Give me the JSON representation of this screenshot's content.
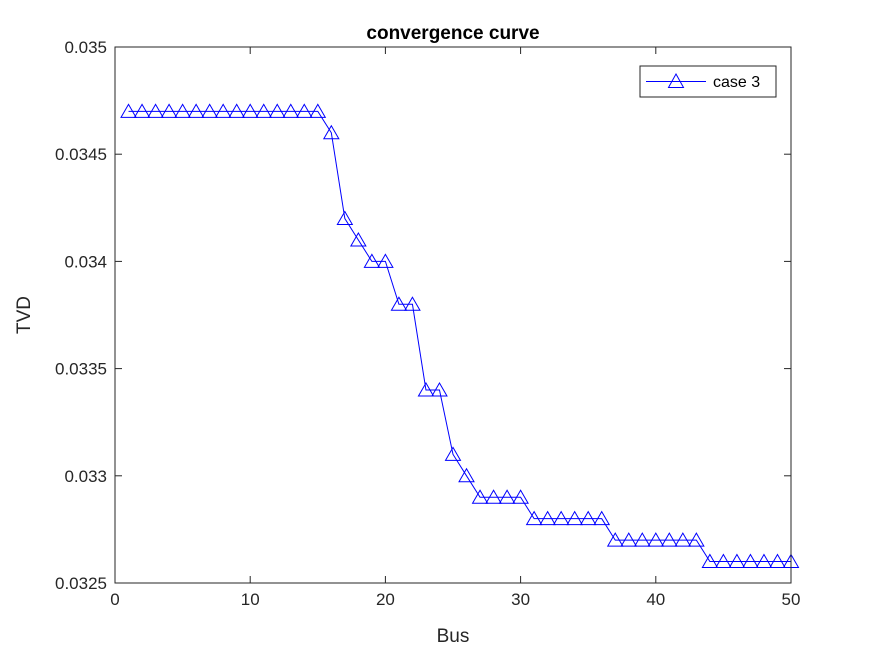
{
  "chart_data": {
    "type": "line",
    "title": "convergence curve",
    "xlabel": "Bus",
    "ylabel": "TVD",
    "xlim": [
      0,
      50
    ],
    "ylim": [
      0.0325,
      0.035
    ],
    "xticks": [
      0,
      10,
      20,
      30,
      40,
      50
    ],
    "xtick_labels": [
      "0",
      "10",
      "20",
      "30",
      "40",
      "50"
    ],
    "yticks": [
      0.0325,
      0.033,
      0.0335,
      0.034,
      0.0345,
      0.035
    ],
    "ytick_labels": [
      "0.0325",
      "0.033",
      "0.0335",
      "0.034",
      "0.0345",
      "0.035"
    ],
    "grid": false,
    "legend_position": "top-right",
    "series": [
      {
        "name": "case 3",
        "color": "#0000ff",
        "marker": "triangle-up",
        "x": [
          1,
          2,
          3,
          4,
          5,
          6,
          7,
          8,
          9,
          10,
          11,
          12,
          13,
          14,
          15,
          16,
          17,
          18,
          19,
          20,
          21,
          22,
          23,
          24,
          25,
          26,
          27,
          28,
          29,
          30,
          31,
          32,
          33,
          34,
          35,
          36,
          37,
          38,
          39,
          40,
          41,
          42,
          43,
          44,
          45,
          46,
          47,
          48,
          49,
          50
        ],
        "y": [
          0.0347,
          0.0347,
          0.0347,
          0.0347,
          0.0347,
          0.0347,
          0.0347,
          0.0347,
          0.0347,
          0.0347,
          0.0347,
          0.0347,
          0.0347,
          0.0347,
          0.0347,
          0.0346,
          0.0342,
          0.0341,
          0.034,
          0.034,
          0.0338,
          0.0338,
          0.0334,
          0.0334,
          0.0331,
          0.033,
          0.0329,
          0.0329,
          0.0329,
          0.0329,
          0.0328,
          0.0328,
          0.0328,
          0.0328,
          0.0328,
          0.0328,
          0.0327,
          0.0327,
          0.0327,
          0.0327,
          0.0327,
          0.0327,
          0.0327,
          0.0326,
          0.0326,
          0.0326,
          0.0326,
          0.0326,
          0.0326,
          0.0326
        ]
      }
    ]
  }
}
